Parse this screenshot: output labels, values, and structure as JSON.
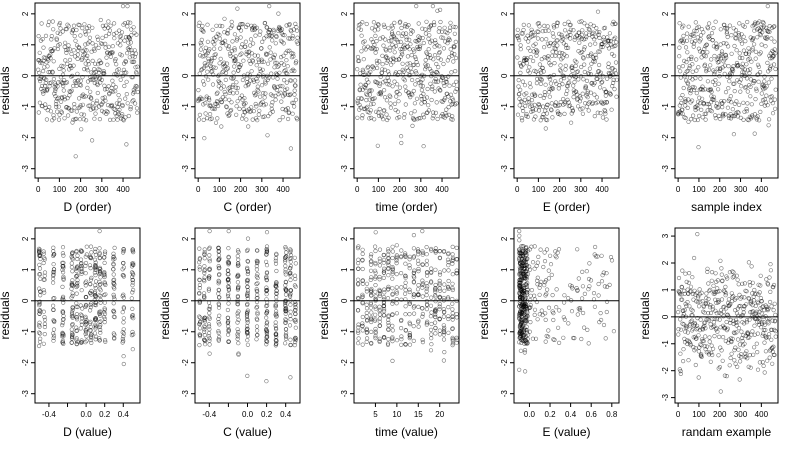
{
  "chart_data": [
    {
      "type": "scatter",
      "xlabel": "D (order)",
      "ylabel": "residuals",
      "xlim": [
        -15,
        480
      ],
      "ylim": [
        -3.3,
        2.35
      ],
      "xticks": [
        0,
        100,
        200,
        300,
        400
      ],
      "xtick_labels": [
        "0",
        "100",
        "200",
        "300",
        "400"
      ],
      "yticks": [
        -3,
        -2,
        -1,
        0,
        1,
        2
      ],
      "ytick_labels": [
        "-3",
        "-2",
        "-1",
        "0",
        "1",
        "2"
      ],
      "hline": 0,
      "grid": false,
      "point_style": "open-circle",
      "x_mode": "index",
      "n_points": 470,
      "seed": 11
    },
    {
      "type": "scatter",
      "xlabel": "C (order)",
      "ylabel": "residuals",
      "xlim": [
        -15,
        480
      ],
      "ylim": [
        -3.3,
        2.35
      ],
      "xticks": [
        0,
        100,
        200,
        300,
        400
      ],
      "xtick_labels": [
        "0",
        "100",
        "200",
        "300",
        "400"
      ],
      "yticks": [
        -3,
        -2,
        -1,
        0,
        1,
        2
      ],
      "ytick_labels": [
        "-3",
        "-2",
        "-1",
        "0",
        "1",
        "2"
      ],
      "hline": 0,
      "grid": false,
      "point_style": "open-circle",
      "x_mode": "index",
      "n_points": 470,
      "seed": 23
    },
    {
      "type": "scatter",
      "xlabel": "time (order)",
      "ylabel": "residuals",
      "xlim": [
        -15,
        480
      ],
      "ylim": [
        -3.3,
        2.35
      ],
      "xticks": [
        0,
        100,
        200,
        300,
        400
      ],
      "xtick_labels": [
        "0",
        "100",
        "200",
        "300",
        "400"
      ],
      "yticks": [
        -3,
        -2,
        -1,
        0,
        1,
        2
      ],
      "ytick_labels": [
        "-3",
        "-2",
        "-1",
        "0",
        "1",
        "2"
      ],
      "hline": 0,
      "grid": false,
      "point_style": "open-circle",
      "x_mode": "index",
      "n_points": 470,
      "seed": 37
    },
    {
      "type": "scatter",
      "xlabel": "E (order)",
      "ylabel": "residuals",
      "xlim": [
        -15,
        480
      ],
      "ylim": [
        -3.3,
        2.35
      ],
      "xticks": [
        0,
        100,
        200,
        300,
        400
      ],
      "xtick_labels": [
        "0",
        "100",
        "200",
        "300",
        "400"
      ],
      "yticks": [
        -3,
        -2,
        -1,
        0,
        1,
        2
      ],
      "ytick_labels": [
        "-3",
        "-2",
        "-1",
        "0",
        "1",
        "2"
      ],
      "hline": 0,
      "grid": false,
      "point_style": "open-circle",
      "x_mode": "index",
      "n_points": 470,
      "seed": 41
    },
    {
      "type": "scatter",
      "xlabel": "sample index",
      "ylabel": "residuals",
      "xlim": [
        -15,
        480
      ],
      "ylim": [
        -3.3,
        2.35
      ],
      "xticks": [
        0,
        100,
        200,
        300,
        400
      ],
      "xtick_labels": [
        "0",
        "100",
        "200",
        "300",
        "400"
      ],
      "yticks": [
        -3,
        -2,
        -1,
        0,
        1,
        2
      ],
      "ytick_labels": [
        "-3",
        "-2",
        "-1",
        "0",
        "1",
        "2"
      ],
      "hline": 0,
      "grid": false,
      "point_style": "open-circle",
      "x_mode": "index",
      "n_points": 470,
      "seed": 53
    },
    {
      "type": "scatter",
      "xlabel": "D (value)",
      "ylabel": "residuals",
      "xlim": [
        -0.55,
        0.58
      ],
      "ylim": [
        -3.3,
        2.35
      ],
      "xticks": [
        -0.4,
        -0.2,
        0,
        0.2,
        0.4
      ],
      "xtick_labels": [
        "-0.4",
        "",
        "0.0",
        "0.2",
        "0.4"
      ],
      "yticks": [
        -3,
        -2,
        -1,
        0,
        1,
        2
      ],
      "ytick_labels": [
        "-3",
        "-2",
        "-1",
        "0",
        "1",
        "2"
      ],
      "hline": 0,
      "grid": false,
      "point_style": "open-circle",
      "x_mode": "discrete",
      "x_levels": [
        -0.5,
        -0.45,
        -0.35,
        -0.25,
        -0.15,
        -0.1,
        -0.05,
        0,
        0.05,
        0.1,
        0.15,
        0.2,
        0.3,
        0.4,
        0.5
      ],
      "x_jitter": 0.008,
      "n_points": 470,
      "seed": 61
    },
    {
      "type": "scatter",
      "xlabel": "C (value)",
      "ylabel": "residuals",
      "xlim": [
        -0.55,
        0.55
      ],
      "ylim": [
        -3.3,
        2.35
      ],
      "xticks": [
        -0.4,
        -0.2,
        0,
        0.2,
        0.4
      ],
      "xtick_labels": [
        "-0.4",
        "",
        "0.0",
        "0.2",
        "0.4"
      ],
      "yticks": [
        -3,
        -2,
        -1,
        0,
        1,
        2
      ],
      "ytick_labels": [
        "-3",
        "-2",
        "-1",
        "0",
        "1",
        "2"
      ],
      "hline": 0,
      "grid": false,
      "point_style": "open-circle",
      "x_mode": "discrete",
      "x_levels": [
        -0.5,
        -0.45,
        -0.4,
        -0.3,
        -0.2,
        -0.1,
        0,
        0.1,
        0.2,
        0.3,
        0.4,
        0.45,
        0.5
      ],
      "x_jitter": 0.006,
      "n_points": 470,
      "seed": 71
    },
    {
      "type": "scatter",
      "xlabel": "time (value)",
      "ylabel": "residuals",
      "xlim": [
        0,
        24.5
      ],
      "ylim": [
        -3.3,
        2.35
      ],
      "xticks": [
        5,
        10,
        15,
        20
      ],
      "xtick_labels": [
        "5",
        "10",
        "15",
        "20"
      ],
      "yticks": [
        -3,
        -2,
        -1,
        0,
        1,
        2
      ],
      "ytick_labels": [
        "-3",
        "-2",
        "-1",
        "0",
        "1",
        "2"
      ],
      "hline": 0,
      "grid": false,
      "point_style": "open-circle",
      "x_mode": "discrete",
      "x_levels": [
        1,
        2,
        3,
        4,
        5,
        6,
        7,
        8,
        9,
        10,
        11,
        12,
        13,
        14,
        15,
        16,
        17,
        18,
        19,
        20,
        21,
        22,
        23,
        24
      ],
      "x_jitter": 0.08,
      "n_points": 470,
      "seed": 83
    },
    {
      "type": "scatter",
      "xlabel": "E (value)",
      "ylabel": "residuals",
      "xlim": [
        -0.15,
        0.87
      ],
      "ylim": [
        -3.3,
        2.35
      ],
      "xticks": [
        0,
        0.2,
        0.4,
        0.6,
        0.8
      ],
      "xtick_labels": [
        "0.0",
        "0.2",
        "0.4",
        "0.6",
        "0.8"
      ],
      "yticks": [
        -3,
        -2,
        -1,
        0,
        1,
        2
      ],
      "ytick_labels": [
        "-3",
        "-2",
        "-1",
        "0",
        "1",
        "2"
      ],
      "hline": 0,
      "grid": false,
      "point_style": "open-circle",
      "x_mode": "skewed",
      "n_points": 470,
      "seed": 97
    },
    {
      "type": "scatter",
      "xlabel": "randam example",
      "ylabel": "residuals",
      "xlim": [
        -15,
        480
      ],
      "ylim": [
        -3.2,
        3.3
      ],
      "xticks": [
        0,
        100,
        200,
        300,
        400
      ],
      "xtick_labels": [
        "0",
        "100",
        "200",
        "300",
        "400"
      ],
      "yticks": [
        -3,
        -2,
        -1,
        0,
        1,
        2,
        3
      ],
      "ytick_labels": [
        "-3",
        "-2",
        "-1",
        "0",
        "1",
        "2",
        "3"
      ],
      "hline": 0,
      "grid": false,
      "point_style": "open-circle",
      "x_mode": "index",
      "n_points": 470,
      "seed": 101,
      "normal": true
    }
  ]
}
